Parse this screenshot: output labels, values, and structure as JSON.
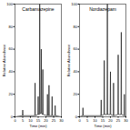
{
  "chart_data": [
    {
      "type": "line",
      "title": "Carbamazepine",
      "x_label": "Time (min)",
      "y_label": "Relative Abundance",
      "x": [
        0,
        4.8,
        5,
        5.2,
        12.8,
        13,
        13.2,
        14.8,
        15,
        15.2,
        15.8,
        16,
        16.2,
        16.8,
        17,
        17.2,
        17.8,
        18,
        18.2,
        20.8,
        21,
        21.2,
        21.8,
        22,
        22.2,
        23.8,
        24,
        24.2,
        25.8,
        26,
        26.2,
        30
      ],
      "values": [
        0,
        1,
        6,
        1,
        1,
        30,
        1,
        2,
        18,
        2,
        2,
        100,
        3,
        3,
        60,
        3,
        2,
        42,
        2,
        1,
        20,
        1,
        1,
        28,
        1,
        1,
        18,
        1,
        1,
        10,
        1,
        0
      ],
      "color": "#000000",
      "xlim": [
        0,
        30
      ],
      "ylim": [
        0,
        100
      ],
      "xticks": [
        0,
        5,
        10,
        15,
        20,
        25,
        30
      ],
      "yticks": [
        0,
        20,
        40,
        60,
        80,
        100
      ]
    },
    {
      "type": "line",
      "title": "Nordiazepam",
      "x_label": "Time (min)",
      "y_label": "Relative Abundance",
      "x": [
        0,
        2,
        2.2,
        2.4,
        13.8,
        14,
        14.2,
        15.8,
        16,
        16.2,
        17.8,
        18,
        18.2,
        19.8,
        20,
        20.2,
        21.8,
        22,
        22.2,
        24.8,
        25,
        25.2,
        26.8,
        27,
        27.2,
        28.8,
        29,
        29.2,
        30
      ],
      "values": [
        0,
        1,
        8,
        1,
        1,
        15,
        1,
        2,
        50,
        2,
        2,
        100,
        2,
        2,
        40,
        2,
        1,
        30,
        1,
        2,
        55,
        2,
        2,
        75,
        2,
        1,
        20,
        1,
        0
      ],
      "color": "#000000",
      "xlim": [
        0,
        30
      ],
      "ylim": [
        0,
        100
      ],
      "xticks": [
        0,
        5,
        10,
        15,
        20,
        25,
        30
      ],
      "yticks": [
        0,
        20,
        40,
        60,
        80,
        100
      ]
    }
  ]
}
